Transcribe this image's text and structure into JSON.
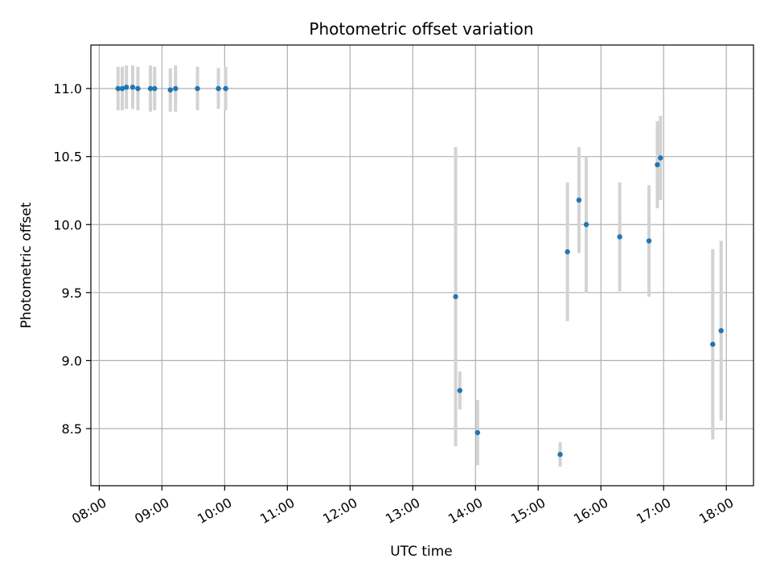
{
  "chart_data": {
    "type": "scatter",
    "title": "Photometric offset variation",
    "xlabel": "UTC time",
    "ylabel": "Photometric offset",
    "x_ticks": [
      "08:00",
      "09:00",
      "10:00",
      "11:00",
      "12:00",
      "13:00",
      "14:00",
      "15:00",
      "16:00",
      "17:00",
      "18:00"
    ],
    "y_ticks": [
      "8.5",
      "9.0",
      "9.5",
      "10.0",
      "10.5",
      "11.0"
    ],
    "xlim": [
      "07:52",
      "18:26"
    ],
    "ylim": [
      8.08,
      11.32
    ],
    "grid": true,
    "colors": {
      "points": "#1f77b4",
      "errorbars": "#d3d3d3",
      "grid": "#b0b0b0"
    },
    "points": [
      {
        "time": "08:18",
        "offset": 11.0,
        "error": 0.16
      },
      {
        "time": "08:22",
        "offset": 11.0,
        "error": 0.16
      },
      {
        "time": "08:26",
        "offset": 11.01,
        "error": 0.16
      },
      {
        "time": "08:32",
        "offset": 11.01,
        "error": 0.16
      },
      {
        "time": "08:37",
        "offset": 11.0,
        "error": 0.16
      },
      {
        "time": "08:49",
        "offset": 11.0,
        "error": 0.17
      },
      {
        "time": "08:53",
        "offset": 11.0,
        "error": 0.16
      },
      {
        "time": "09:08",
        "offset": 10.99,
        "error": 0.16
      },
      {
        "time": "09:13",
        "offset": 11.0,
        "error": 0.17
      },
      {
        "time": "09:34",
        "offset": 11.0,
        "error": 0.16
      },
      {
        "time": "09:54",
        "offset": 11.0,
        "error": 0.15
      },
      {
        "time": "10:01",
        "offset": 11.0,
        "error": 0.16
      },
      {
        "time": "13:41",
        "offset": 9.47,
        "error": 1.1
      },
      {
        "time": "13:45",
        "offset": 8.78,
        "error": 0.14
      },
      {
        "time": "14:02",
        "offset": 8.47,
        "error": 0.24
      },
      {
        "time": "15:21",
        "offset": 8.31,
        "error": 0.09
      },
      {
        "time": "15:28",
        "offset": 9.8,
        "error": 0.51
      },
      {
        "time": "15:39",
        "offset": 10.18,
        "error": 0.39
      },
      {
        "time": "15:46",
        "offset": 10.0,
        "error": 0.5
      },
      {
        "time": "16:18",
        "offset": 9.91,
        "error": 0.4
      },
      {
        "time": "16:46",
        "offset": 9.88,
        "error": 0.41
      },
      {
        "time": "16:54",
        "offset": 10.44,
        "error": 0.32
      },
      {
        "time": "16:57",
        "offset": 10.49,
        "error": 0.31
      },
      {
        "time": "17:47",
        "offset": 9.12,
        "error": 0.7
      },
      {
        "time": "17:55",
        "offset": 9.22,
        "error": 0.66
      }
    ]
  }
}
